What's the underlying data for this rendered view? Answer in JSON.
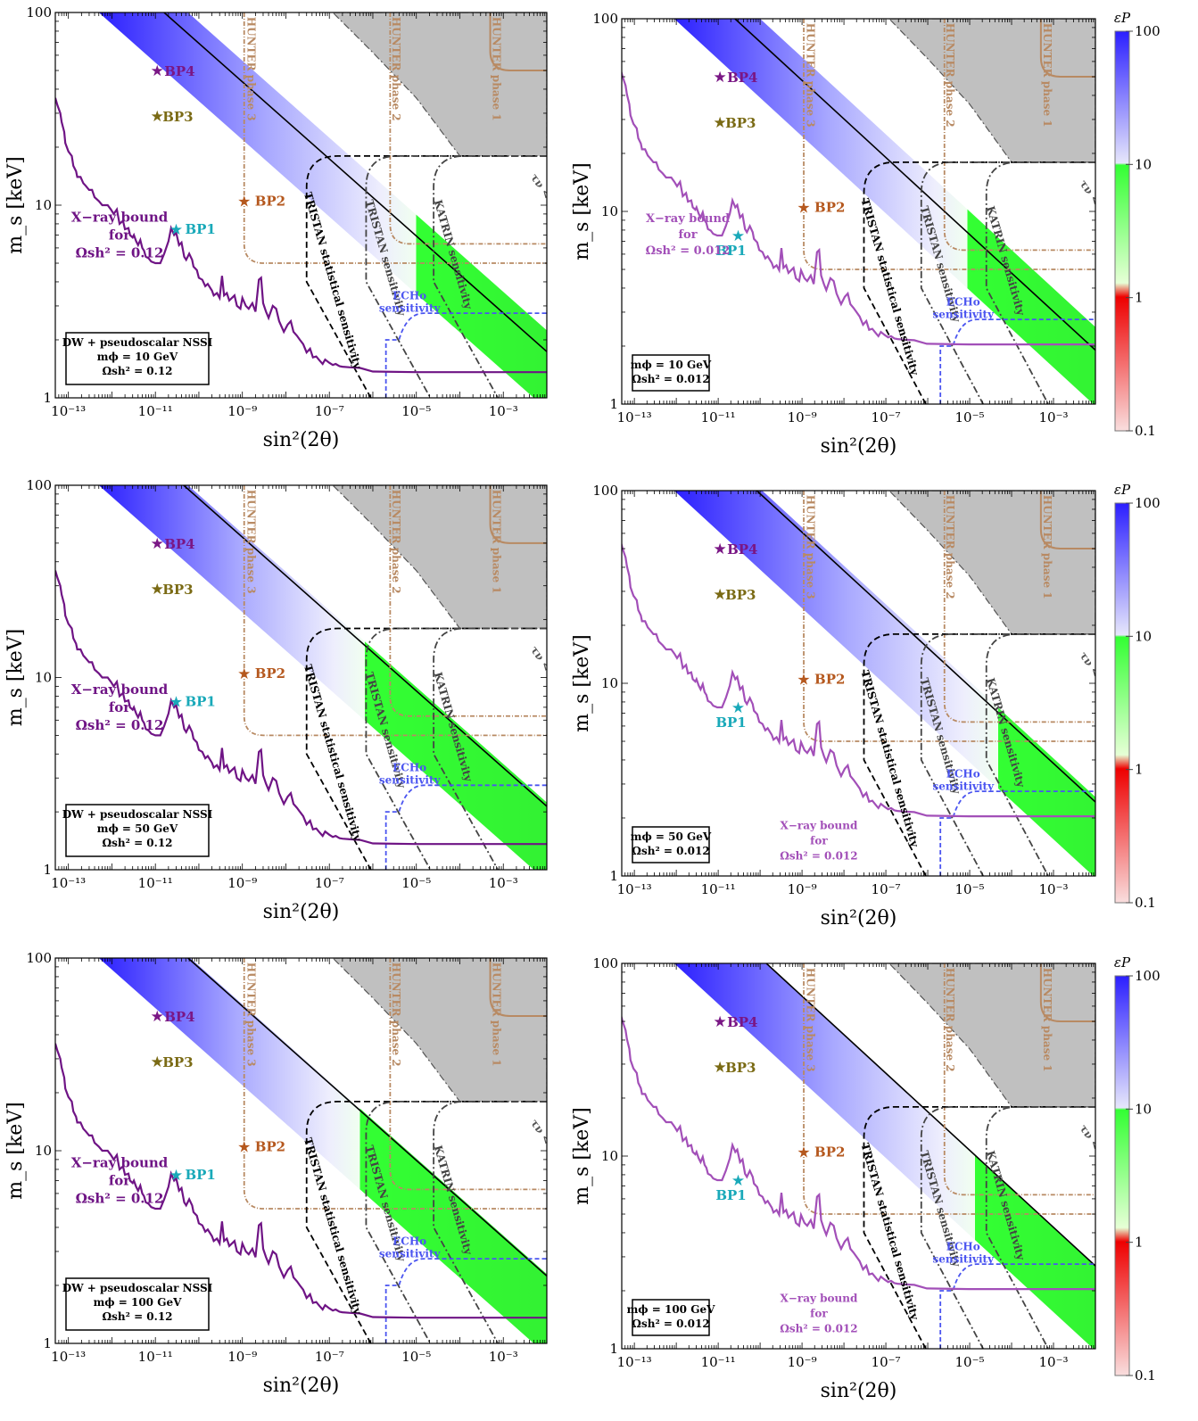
{
  "figure": {
    "colorbar_label": "εP",
    "colorbar_ticks": [
      "100",
      "10",
      "1",
      "0.1"
    ]
  },
  "chart_data": [
    {
      "type": "line",
      "xlabel": "sin²(2θ)",
      "ylabel": "m_s [keV]",
      "xscale": "log",
      "yscale": "log",
      "xlim": [
        5e-14,
        0.01
      ],
      "ylim": [
        1,
        100
      ],
      "xticks": [
        "10⁻¹³",
        "10⁻¹¹",
        "10⁻⁹",
        "10⁻⁷",
        "10⁻⁵",
        "10⁻³"
      ],
      "yticks": [
        "1",
        "10",
        "100"
      ],
      "box": [
        "DW + pseudoscalar NSSI",
        "mϕ = 10 GeV",
        "Ωsh² = 0.12"
      ],
      "xray_label": [
        "X−ray bound",
        "for",
        "Ωsh² = 0.12"
      ],
      "benchmarks": [
        {
          "name": "BP1",
          "x": 3e-11,
          "y": 7.5
        },
        {
          "name": "BP2",
          "x": 1.1e-09,
          "y": 10.5
        },
        {
          "name": "BP3",
          "x": 1.1e-11,
          "y": 29
        },
        {
          "name": "BP4",
          "x": 1.1e-11,
          "y": 50
        }
      ],
      "labels": {
        "hunter3": "HUNTER phase 3",
        "hunter2": "HUNTER phase 2",
        "hunter1": "HUNTER phase 1",
        "tristan_stat": "TRISTAN statistical sensitivity",
        "tristan": "TRISTAN sensitivity",
        "katrin": "KATRIN sensitivity",
        "echo": [
          "ECHo",
          "sensitivity"
        ],
        "lifetime": "τν < tU"
      }
    },
    {
      "type": "line",
      "xlabel": "sin²(2θ)",
      "ylabel": "m_s [keV]",
      "xscale": "log",
      "yscale": "log",
      "xlim": [
        5e-14,
        0.01
      ],
      "ylim": [
        1,
        100
      ],
      "xticks": [
        "10⁻¹³",
        "10⁻¹¹",
        "10⁻⁹",
        "10⁻⁷",
        "10⁻⁵",
        "10⁻³"
      ],
      "yticks": [
        "1",
        "10",
        "100"
      ],
      "box": [
        "mϕ = 10 GeV",
        "Ωsh² = 0.012"
      ],
      "xray_label": [
        "X−ray bound",
        "for",
        "Ωsh² = 0.012"
      ],
      "benchmarks": [
        {
          "name": "BP1",
          "x": 3e-11,
          "y": 7.5
        },
        {
          "name": "BP2",
          "x": 1.1e-09,
          "y": 10.5
        },
        {
          "name": "BP3",
          "x": 1.1e-11,
          "y": 29
        },
        {
          "name": "BP4",
          "x": 1.1e-11,
          "y": 50
        }
      ],
      "labels": {
        "hunter3": "HUNTER phase 3",
        "hunter2": "HUNTER phase 2",
        "hunter1": "HUNTER phase 1",
        "tristan_stat": "TRISTAN statistical sensitivity",
        "tristan": "TRISTAN sensitivity",
        "katrin": "KATRIN sensitivity",
        "echo": [
          "ECHo",
          "sensitivity"
        ],
        "lifetime": "τν < tU"
      }
    },
    {
      "type": "line",
      "xlabel": "sin²(2θ)",
      "ylabel": "m_s [keV]",
      "xscale": "log",
      "yscale": "log",
      "xlim": [
        5e-14,
        0.01
      ],
      "ylim": [
        1,
        100
      ],
      "xticks": [
        "10⁻¹³",
        "10⁻¹¹",
        "10⁻⁹",
        "10⁻⁷",
        "10⁻⁵",
        "10⁻³"
      ],
      "yticks": [
        "1",
        "10",
        "100"
      ],
      "box": [
        "DW + pseudoscalar NSSI",
        "mϕ = 50 GeV",
        "Ωsh² = 0.12"
      ],
      "xray_label": [
        "X−ray bound",
        "for",
        "Ωsh² = 0.12"
      ],
      "benchmarks": [
        {
          "name": "BP1",
          "x": 3e-11,
          "y": 7.5
        },
        {
          "name": "BP2",
          "x": 1.1e-09,
          "y": 10.5
        },
        {
          "name": "BP3",
          "x": 1.1e-11,
          "y": 29
        },
        {
          "name": "BP4",
          "x": 1.1e-11,
          "y": 50
        }
      ],
      "labels": {
        "hunter3": "HUNTER phase 3",
        "hunter2": "HUNTER phase 2",
        "hunter1": "HUNTER phase 1",
        "tristan_stat": "TRISTAN statistical sensitivity",
        "tristan": "TRISTAN sensitivity",
        "katrin": "KATRIN sensitivity",
        "echo": [
          "ECHo",
          "sensitivity"
        ],
        "lifetime": "τν < tU"
      }
    },
    {
      "type": "line",
      "xlabel": "sin²(2θ)",
      "ylabel": "m_s [keV]",
      "xscale": "log",
      "yscale": "log",
      "xlim": [
        5e-14,
        0.01
      ],
      "ylim": [
        1,
        100
      ],
      "xticks": [
        "10⁻¹³",
        "10⁻¹¹",
        "10⁻⁹",
        "10⁻⁷",
        "10⁻⁵",
        "10⁻³"
      ],
      "yticks": [
        "1",
        "10",
        "100"
      ],
      "box": [
        "mϕ = 50 GeV",
        "Ωsh² = 0.012"
      ],
      "xray_label": [
        "X−ray bound",
        "for",
        "Ωsh² = 0.012"
      ],
      "benchmarks": [
        {
          "name": "BP1",
          "x": 3e-11,
          "y": 7.5
        },
        {
          "name": "BP2",
          "x": 1.1e-09,
          "y": 10.5
        },
        {
          "name": "BP3",
          "x": 1.1e-11,
          "y": 29
        },
        {
          "name": "BP4",
          "x": 1.1e-11,
          "y": 50
        }
      ],
      "labels": {
        "hunter3": "HUNTER phase 3",
        "hunter2": "HUNTER phase 2",
        "hunter1": "HUNTER phase 1",
        "tristan_stat": "TRISTAN statistical sensitivity",
        "tristan": "TRISTAN sensitivity",
        "katrin": "KATRIN sensitivity",
        "echo": [
          "ECHo",
          "sensitivity"
        ],
        "lifetime": "τν < tU"
      }
    },
    {
      "type": "line",
      "xlabel": "sin²(2θ)",
      "ylabel": "m_s [keV]",
      "xscale": "log",
      "yscale": "log",
      "xlim": [
        5e-14,
        0.01
      ],
      "ylim": [
        1,
        100
      ],
      "xticks": [
        "10⁻¹³",
        "10⁻¹¹",
        "10⁻⁹",
        "10⁻⁷",
        "10⁻⁵",
        "10⁻³"
      ],
      "yticks": [
        "1",
        "10",
        "100"
      ],
      "box": [
        "DW + pseudoscalar NSSI",
        "mϕ = 100 GeV",
        "Ωsh² = 0.12"
      ],
      "xray_label": [
        "X−ray bound",
        "for",
        "Ωsh² = 0.12"
      ],
      "benchmarks": [
        {
          "name": "BP1",
          "x": 3e-11,
          "y": 7.5
        },
        {
          "name": "BP2",
          "x": 1.1e-09,
          "y": 10.5
        },
        {
          "name": "BP3",
          "x": 1.1e-11,
          "y": 29
        },
        {
          "name": "BP4",
          "x": 1.1e-11,
          "y": 50
        }
      ],
      "labels": {
        "hunter3": "HUNTER phase 3",
        "hunter2": "HUNTER phase 2",
        "hunter1": "HUNTER phase 1",
        "tristan_stat": "TRISTAN statistical sensitivity",
        "tristan": "TRISTAN sensitivity",
        "katrin": "KATRIN sensitivity",
        "echo": [
          "ECHo",
          "sensitivity"
        ],
        "lifetime": "τν < tU"
      }
    },
    {
      "type": "line",
      "xlabel": "sin²(2θ)",
      "ylabel": "m_s [keV]",
      "xscale": "log",
      "yscale": "log",
      "xlim": [
        5e-14,
        0.01
      ],
      "ylim": [
        1,
        100
      ],
      "xticks": [
        "10⁻¹³",
        "10⁻¹¹",
        "10⁻⁹",
        "10⁻⁷",
        "10⁻⁵",
        "10⁻³"
      ],
      "yticks": [
        "1",
        "10",
        "100"
      ],
      "box": [
        "mϕ = 100 GeV",
        "Ωsh² = 0.012"
      ],
      "xray_label": [
        "X−ray bound",
        "for",
        "Ωsh² = 0.012"
      ],
      "benchmarks": [
        {
          "name": "BP1",
          "x": 3e-11,
          "y": 7.5
        },
        {
          "name": "BP2",
          "x": 1.1e-09,
          "y": 10.5
        },
        {
          "name": "BP3",
          "x": 1.1e-11,
          "y": 29
        },
        {
          "name": "BP4",
          "x": 1.1e-11,
          "y": 50
        }
      ],
      "labels": {
        "hunter3": "HUNTER phase 3",
        "hunter2": "HUNTER phase 2",
        "hunter1": "HUNTER phase 1",
        "tristan_stat": "TRISTAN statistical sensitivity",
        "tristan": "TRISTAN sensitivity",
        "katrin": "KATRIN sensitivity",
        "echo": [
          "ECHo",
          "sensitivity"
        ],
        "lifetime": "τν < tU"
      }
    }
  ]
}
